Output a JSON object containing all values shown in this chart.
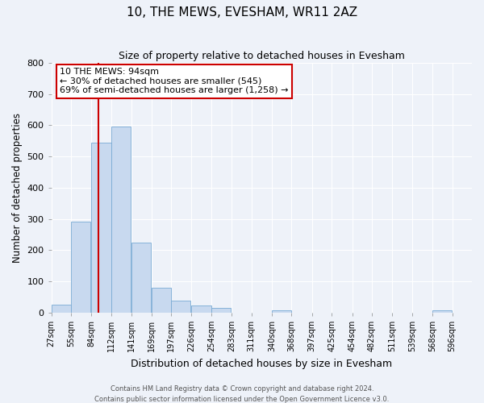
{
  "title": "10, THE MEWS, EVESHAM, WR11 2AZ",
  "subtitle": "Size of property relative to detached houses in Evesham",
  "xlabel": "Distribution of detached houses by size in Evesham",
  "ylabel": "Number of detached properties",
  "bar_color": "#c8d9ef",
  "bar_edge_color": "#7aabd4",
  "background_color": "#eef2f9",
  "grid_color": "#ffffff",
  "bins_left": [
    27,
    55,
    84,
    112,
    141,
    169,
    197,
    226,
    254,
    283,
    311,
    340,
    368,
    397,
    425,
    454,
    482,
    511,
    539,
    568
  ],
  "bin_width": 28,
  "bar_heights": [
    25,
    290,
    545,
    595,
    225,
    80,
    38,
    23,
    15,
    0,
    0,
    8,
    0,
    0,
    0,
    0,
    0,
    0,
    0,
    8
  ],
  "tick_labels": [
    "27sqm",
    "55sqm",
    "84sqm",
    "112sqm",
    "141sqm",
    "169sqm",
    "197sqm",
    "226sqm",
    "254sqm",
    "283sqm",
    "311sqm",
    "340sqm",
    "368sqm",
    "397sqm",
    "425sqm",
    "454sqm",
    "482sqm",
    "511sqm",
    "539sqm",
    "568sqm",
    "596sqm"
  ],
  "ylim": [
    0,
    800
  ],
  "yticks": [
    0,
    100,
    200,
    300,
    400,
    500,
    600,
    700,
    800
  ],
  "xlim_left": 27,
  "xlim_right": 624,
  "red_line_x": 94,
  "annotation_title": "10 THE MEWS: 94sqm",
  "annotation_line1": "← 30% of detached houses are smaller (545)",
  "annotation_line2": "69% of semi-detached houses are larger (1,258) →",
  "annotation_box_color": "#ffffff",
  "annotation_border_color": "#cc0000",
  "red_line_color": "#cc0000",
  "footer1": "Contains HM Land Registry data © Crown copyright and database right 2024.",
  "footer2": "Contains public sector information licensed under the Open Government Licence v3.0."
}
